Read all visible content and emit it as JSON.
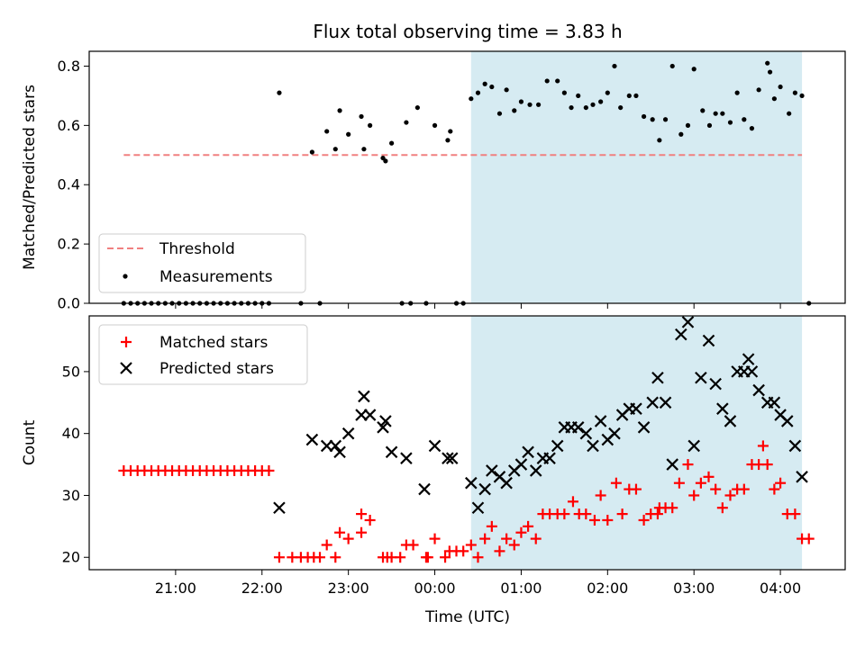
{
  "chart_data": [
    {
      "type": "scatter",
      "title": "Flux total observing time = 3.83 h",
      "ylabel": "Matched/Predicted stars",
      "ylim": [
        0,
        0.85
      ],
      "yticks": [
        0.0,
        0.2,
        0.4,
        0.6,
        0.8
      ],
      "ytick_labels": [
        "0.0",
        "0.2",
        "0.4",
        "0.6",
        "0.8"
      ],
      "x_unit": "hours since 00:00 UTC",
      "xlim": [
        -4.0,
        4.75
      ],
      "shaded_span": [
        0.42,
        4.25
      ],
      "threshold": {
        "name": "Threshold",
        "y": 0.5,
        "x_range": [
          -3.6,
          4.25
        ],
        "color": "#f08080"
      },
      "legend": {
        "placement": "lower-left",
        "entries": [
          "Threshold",
          "Measurements"
        ]
      },
      "series": [
        {
          "name": "Measurements",
          "color": "#000000",
          "points": [
            [
              -3.6,
              0
            ],
            [
              -3.52,
              0
            ],
            [
              -3.44,
              0
            ],
            [
              -3.36,
              0
            ],
            [
              -3.28,
              0
            ],
            [
              -3.2,
              0
            ],
            [
              -3.12,
              0
            ],
            [
              -3.04,
              0
            ],
            [
              -2.96,
              0
            ],
            [
              -2.88,
              0
            ],
            [
              -2.8,
              0
            ],
            [
              -2.72,
              0
            ],
            [
              -2.64,
              0
            ],
            [
              -2.56,
              0
            ],
            [
              -2.48,
              0
            ],
            [
              -2.4,
              0
            ],
            [
              -2.32,
              0
            ],
            [
              -2.24,
              0
            ],
            [
              -2.16,
              0
            ],
            [
              -2.08,
              0
            ],
            [
              -2.0,
              0
            ],
            [
              -1.92,
              0
            ],
            [
              -1.8,
              0.71
            ],
            [
              -1.55,
              0
            ],
            [
              -1.42,
              0.51
            ],
            [
              -1.33,
              0
            ],
            [
              -1.25,
              0.58
            ],
            [
              -1.15,
              0.52
            ],
            [
              -1.1,
              0.65
            ],
            [
              -1.0,
              0.57
            ],
            [
              -0.85,
              0.63
            ],
            [
              -0.82,
              0.52
            ],
            [
              -0.75,
              0.6
            ],
            [
              -0.6,
              0.49
            ],
            [
              -0.57,
              0.48
            ],
            [
              -0.5,
              0.54
            ],
            [
              -0.38,
              0
            ],
            [
              -0.33,
              0.61
            ],
            [
              -0.28,
              0
            ],
            [
              -0.2,
              0.66
            ],
            [
              -0.1,
              0
            ],
            [
              0.0,
              0.6
            ],
            [
              0.15,
              0.55
            ],
            [
              0.18,
              0.58
            ],
            [
              0.25,
              0
            ],
            [
              0.33,
              0
            ],
            [
              0.42,
              0.69
            ],
            [
              0.5,
              0.71
            ],
            [
              0.58,
              0.74
            ],
            [
              0.66,
              0.73
            ],
            [
              0.75,
              0.64
            ],
            [
              0.83,
              0.72
            ],
            [
              0.92,
              0.65
            ],
            [
              1.0,
              0.68
            ],
            [
              1.1,
              0.67
            ],
            [
              1.2,
              0.67
            ],
            [
              1.3,
              0.75
            ],
            [
              1.42,
              0.75
            ],
            [
              1.5,
              0.71
            ],
            [
              1.58,
              0.66
            ],
            [
              1.66,
              0.7
            ],
            [
              1.75,
              0.66
            ],
            [
              1.83,
              0.67
            ],
            [
              1.92,
              0.68
            ],
            [
              2.0,
              0.71
            ],
            [
              2.08,
              0.8
            ],
            [
              2.15,
              0.66
            ],
            [
              2.25,
              0.7
            ],
            [
              2.33,
              0.7
            ],
            [
              2.42,
              0.63
            ],
            [
              2.52,
              0.62
            ],
            [
              2.6,
              0.55
            ],
            [
              2.67,
              0.62
            ],
            [
              2.75,
              0.8
            ],
            [
              2.85,
              0.57
            ],
            [
              2.93,
              0.6
            ],
            [
              3.0,
              0.79
            ],
            [
              3.1,
              0.65
            ],
            [
              3.18,
              0.6
            ],
            [
              3.25,
              0.64
            ],
            [
              3.33,
              0.64
            ],
            [
              3.42,
              0.61
            ],
            [
              3.5,
              0.71
            ],
            [
              3.58,
              0.62
            ],
            [
              3.67,
              0.59
            ],
            [
              3.75,
              0.72
            ],
            [
              3.85,
              0.81
            ],
            [
              3.88,
              0.78
            ],
            [
              3.93,
              0.69
            ],
            [
              4.0,
              0.73
            ],
            [
              4.1,
              0.64
            ],
            [
              4.17,
              0.71
            ],
            [
              4.25,
              0.7
            ],
            [
              4.33,
              0
            ]
          ]
        }
      ]
    },
    {
      "type": "scatter",
      "xlabel": "Time (UTC)",
      "ylabel": "Count",
      "ylim": [
        18,
        59
      ],
      "yticks": [
        20,
        30,
        40,
        50
      ],
      "ytick_labels": [
        "20",
        "30",
        "40",
        "50"
      ],
      "x_unit": "hours since 00:00 UTC",
      "xlim": [
        -4.0,
        4.75
      ],
      "xticks": [
        -3,
        -2,
        -1,
        0,
        1,
        2,
        3,
        4
      ],
      "xtick_labels": [
        "21:00",
        "22:00",
        "23:00",
        "00:00",
        "01:00",
        "02:00",
        "03:00",
        "04:00"
      ],
      "shaded_span": [
        0.42,
        4.25
      ],
      "legend": {
        "placement": "top-left",
        "entries": [
          "Matched stars",
          "Predicted stars"
        ]
      },
      "series": [
        {
          "name": "Matched stars",
          "marker": "plus",
          "color": "#ff0000",
          "points": [
            [
              -3.6,
              34
            ],
            [
              -3.52,
              34
            ],
            [
              -3.44,
              34
            ],
            [
              -3.36,
              34
            ],
            [
              -3.28,
              34
            ],
            [
              -3.2,
              34
            ],
            [
              -3.12,
              34
            ],
            [
              -3.04,
              34
            ],
            [
              -2.96,
              34
            ],
            [
              -2.88,
              34
            ],
            [
              -2.8,
              34
            ],
            [
              -2.72,
              34
            ],
            [
              -2.64,
              34
            ],
            [
              -2.56,
              34
            ],
            [
              -2.48,
              34
            ],
            [
              -2.4,
              34
            ],
            [
              -2.32,
              34
            ],
            [
              -2.24,
              34
            ],
            [
              -2.16,
              34
            ],
            [
              -2.08,
              34
            ],
            [
              -2.0,
              34
            ],
            [
              -1.92,
              34
            ],
            [
              -1.8,
              20
            ],
            [
              -1.65,
              20
            ],
            [
              -1.55,
              20
            ],
            [
              -1.47,
              20
            ],
            [
              -1.4,
              20
            ],
            [
              -1.33,
              20
            ],
            [
              -1.25,
              22
            ],
            [
              -1.15,
              20
            ],
            [
              -1.1,
              24
            ],
            [
              -1.0,
              23
            ],
            [
              -0.85,
              27
            ],
            [
              -0.85,
              24
            ],
            [
              -0.75,
              26
            ],
            [
              -0.6,
              20
            ],
            [
              -0.55,
              20
            ],
            [
              -0.5,
              20
            ],
            [
              -0.4,
              20
            ],
            [
              -0.33,
              22
            ],
            [
              -0.25,
              22
            ],
            [
              -0.1,
              20
            ],
            [
              -0.08,
              20
            ],
            [
              0.0,
              23
            ],
            [
              0.12,
              20
            ],
            [
              0.17,
              21
            ],
            [
              0.25,
              21
            ],
            [
              0.33,
              21
            ],
            [
              0.42,
              22
            ],
            [
              0.5,
              20
            ],
            [
              0.58,
              23
            ],
            [
              0.66,
              25
            ],
            [
              0.75,
              21
            ],
            [
              0.83,
              23
            ],
            [
              0.92,
              22
            ],
            [
              1.0,
              24
            ],
            [
              1.08,
              25
            ],
            [
              1.17,
              23
            ],
            [
              1.25,
              27
            ],
            [
              1.33,
              27
            ],
            [
              1.42,
              27
            ],
            [
              1.5,
              27
            ],
            [
              1.6,
              29
            ],
            [
              1.67,
              27
            ],
            [
              1.75,
              27
            ],
            [
              1.85,
              26
            ],
            [
              1.92,
              30
            ],
            [
              2.0,
              26
            ],
            [
              2.1,
              32
            ],
            [
              2.17,
              27
            ],
            [
              2.25,
              31
            ],
            [
              2.33,
              31
            ],
            [
              2.42,
              26
            ],
            [
              2.5,
              27
            ],
            [
              2.58,
              27
            ],
            [
              2.6,
              28
            ],
            [
              2.67,
              28
            ],
            [
              2.75,
              28
            ],
            [
              2.83,
              32
            ],
            [
              2.93,
              35
            ],
            [
              3.0,
              30
            ],
            [
              3.08,
              32
            ],
            [
              3.17,
              33
            ],
            [
              3.25,
              31
            ],
            [
              3.33,
              28
            ],
            [
              3.42,
              30
            ],
            [
              3.5,
              31
            ],
            [
              3.58,
              31
            ],
            [
              3.67,
              35
            ],
            [
              3.75,
              35
            ],
            [
              3.8,
              38
            ],
            [
              3.85,
              35
            ],
            [
              3.93,
              31
            ],
            [
              4.0,
              32
            ],
            [
              4.08,
              27
            ],
            [
              4.17,
              27
            ],
            [
              4.25,
              23
            ],
            [
              4.33,
              23
            ]
          ]
        },
        {
          "name": "Predicted stars",
          "marker": "x",
          "color": "#000000",
          "points": [
            [
              -1.8,
              28
            ],
            [
              -1.42,
              39
            ],
            [
              -1.25,
              38
            ],
            [
              -1.15,
              38
            ],
            [
              -1.1,
              37
            ],
            [
              -1.0,
              40
            ],
            [
              -0.85,
              43
            ],
            [
              -0.82,
              46
            ],
            [
              -0.75,
              43
            ],
            [
              -0.6,
              41
            ],
            [
              -0.57,
              42
            ],
            [
              -0.5,
              37
            ],
            [
              -0.33,
              36
            ],
            [
              -0.12,
              31
            ],
            [
              0.0,
              38
            ],
            [
              0.15,
              36
            ],
            [
              0.2,
              36
            ],
            [
              0.42,
              32
            ],
            [
              0.5,
              28
            ],
            [
              0.58,
              31
            ],
            [
              0.66,
              34
            ],
            [
              0.75,
              33
            ],
            [
              0.83,
              32
            ],
            [
              0.92,
              34
            ],
            [
              1.0,
              35
            ],
            [
              1.08,
              37
            ],
            [
              1.17,
              34
            ],
            [
              1.25,
              36
            ],
            [
              1.33,
              36
            ],
            [
              1.42,
              38
            ],
            [
              1.5,
              41
            ],
            [
              1.58,
              41
            ],
            [
              1.66,
              41
            ],
            [
              1.75,
              40
            ],
            [
              1.83,
              38
            ],
            [
              1.92,
              42
            ],
            [
              2.0,
              39
            ],
            [
              2.08,
              40
            ],
            [
              2.17,
              43
            ],
            [
              2.25,
              44
            ],
            [
              2.33,
              44
            ],
            [
              2.42,
              41
            ],
            [
              2.52,
              45
            ],
            [
              2.58,
              49
            ],
            [
              2.67,
              45
            ],
            [
              2.75,
              35
            ],
            [
              2.85,
              56
            ],
            [
              2.93,
              58
            ],
            [
              3.0,
              38
            ],
            [
              3.08,
              49
            ],
            [
              3.17,
              55
            ],
            [
              3.25,
              48
            ],
            [
              3.33,
              44
            ],
            [
              3.42,
              42
            ],
            [
              3.5,
              50
            ],
            [
              3.58,
              50
            ],
            [
              3.63,
              52
            ],
            [
              3.67,
              50
            ],
            [
              3.75,
              47
            ],
            [
              3.85,
              45
            ],
            [
              3.93,
              45
            ],
            [
              4.0,
              43
            ],
            [
              4.08,
              42
            ],
            [
              4.17,
              38
            ],
            [
              4.25,
              33
            ]
          ]
        }
      ]
    }
  ]
}
